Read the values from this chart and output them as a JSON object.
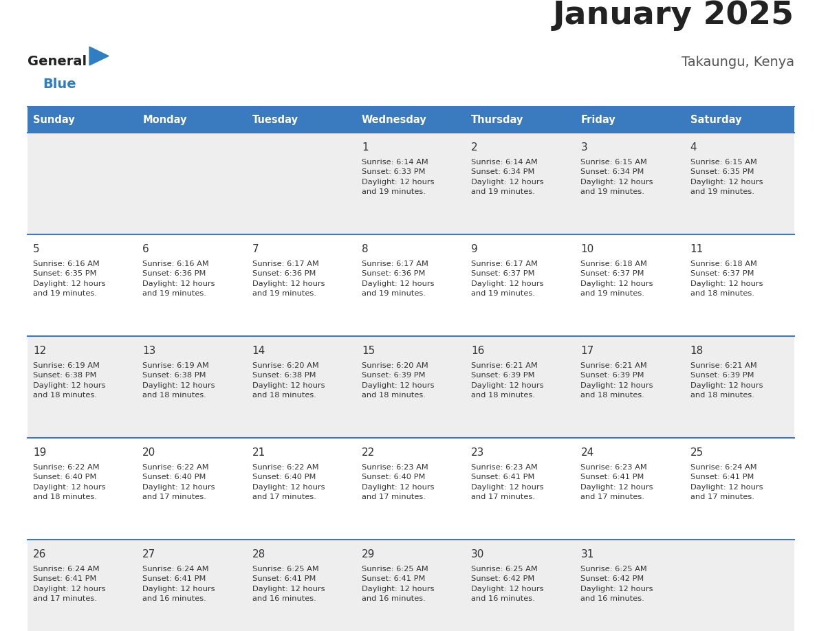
{
  "title": "January 2025",
  "subtitle": "Takaungu, Kenya",
  "days_of_week": [
    "Sunday",
    "Monday",
    "Tuesday",
    "Wednesday",
    "Thursday",
    "Friday",
    "Saturday"
  ],
  "header_bg": "#3a7abf",
  "header_text": "#ffffff",
  "row_bg_odd": "#eeeeee",
  "row_bg_even": "#ffffff",
  "cell_border": "#3a7abf",
  "logo_general_color": "#222222",
  "logo_blue_color": "#2e7fc1",
  "title_color": "#222222",
  "subtitle_color": "#555555",
  "text_color": "#333333",
  "calendar_data": [
    [
      "",
      "",
      "",
      "1|Sunrise: 6:14 AM|Sunset: 6:33 PM|Daylight: 12 hours|and 19 minutes.",
      "2|Sunrise: 6:14 AM|Sunset: 6:34 PM|Daylight: 12 hours|and 19 minutes.",
      "3|Sunrise: 6:15 AM|Sunset: 6:34 PM|Daylight: 12 hours|and 19 minutes.",
      "4|Sunrise: 6:15 AM|Sunset: 6:35 PM|Daylight: 12 hours|and 19 minutes."
    ],
    [
      "5|Sunrise: 6:16 AM|Sunset: 6:35 PM|Daylight: 12 hours|and 19 minutes.",
      "6|Sunrise: 6:16 AM|Sunset: 6:36 PM|Daylight: 12 hours|and 19 minutes.",
      "7|Sunrise: 6:17 AM|Sunset: 6:36 PM|Daylight: 12 hours|and 19 minutes.",
      "8|Sunrise: 6:17 AM|Sunset: 6:36 PM|Daylight: 12 hours|and 19 minutes.",
      "9|Sunrise: 6:17 AM|Sunset: 6:37 PM|Daylight: 12 hours|and 19 minutes.",
      "10|Sunrise: 6:18 AM|Sunset: 6:37 PM|Daylight: 12 hours|and 19 minutes.",
      "11|Sunrise: 6:18 AM|Sunset: 6:37 PM|Daylight: 12 hours|and 18 minutes."
    ],
    [
      "12|Sunrise: 6:19 AM|Sunset: 6:38 PM|Daylight: 12 hours|and 18 minutes.",
      "13|Sunrise: 6:19 AM|Sunset: 6:38 PM|Daylight: 12 hours|and 18 minutes.",
      "14|Sunrise: 6:20 AM|Sunset: 6:38 PM|Daylight: 12 hours|and 18 minutes.",
      "15|Sunrise: 6:20 AM|Sunset: 6:39 PM|Daylight: 12 hours|and 18 minutes.",
      "16|Sunrise: 6:21 AM|Sunset: 6:39 PM|Daylight: 12 hours|and 18 minutes.",
      "17|Sunrise: 6:21 AM|Sunset: 6:39 PM|Daylight: 12 hours|and 18 minutes.",
      "18|Sunrise: 6:21 AM|Sunset: 6:39 PM|Daylight: 12 hours|and 18 minutes."
    ],
    [
      "19|Sunrise: 6:22 AM|Sunset: 6:40 PM|Daylight: 12 hours|and 18 minutes.",
      "20|Sunrise: 6:22 AM|Sunset: 6:40 PM|Daylight: 12 hours|and 17 minutes.",
      "21|Sunrise: 6:22 AM|Sunset: 6:40 PM|Daylight: 12 hours|and 17 minutes.",
      "22|Sunrise: 6:23 AM|Sunset: 6:40 PM|Daylight: 12 hours|and 17 minutes.",
      "23|Sunrise: 6:23 AM|Sunset: 6:41 PM|Daylight: 12 hours|and 17 minutes.",
      "24|Sunrise: 6:23 AM|Sunset: 6:41 PM|Daylight: 12 hours|and 17 minutes.",
      "25|Sunrise: 6:24 AM|Sunset: 6:41 PM|Daylight: 12 hours|and 17 minutes."
    ],
    [
      "26|Sunrise: 6:24 AM|Sunset: 6:41 PM|Daylight: 12 hours|and 17 minutes.",
      "27|Sunrise: 6:24 AM|Sunset: 6:41 PM|Daylight: 12 hours|and 16 minutes.",
      "28|Sunrise: 6:25 AM|Sunset: 6:41 PM|Daylight: 12 hours|and 16 minutes.",
      "29|Sunrise: 6:25 AM|Sunset: 6:41 PM|Daylight: 12 hours|and 16 minutes.",
      "30|Sunrise: 6:25 AM|Sunset: 6:42 PM|Daylight: 12 hours|and 16 minutes.",
      "31|Sunrise: 6:25 AM|Sunset: 6:42 PM|Daylight: 12 hours|and 16 minutes.",
      ""
    ]
  ],
  "fig_width": 11.88,
  "fig_height": 9.18,
  "dpi": 100
}
